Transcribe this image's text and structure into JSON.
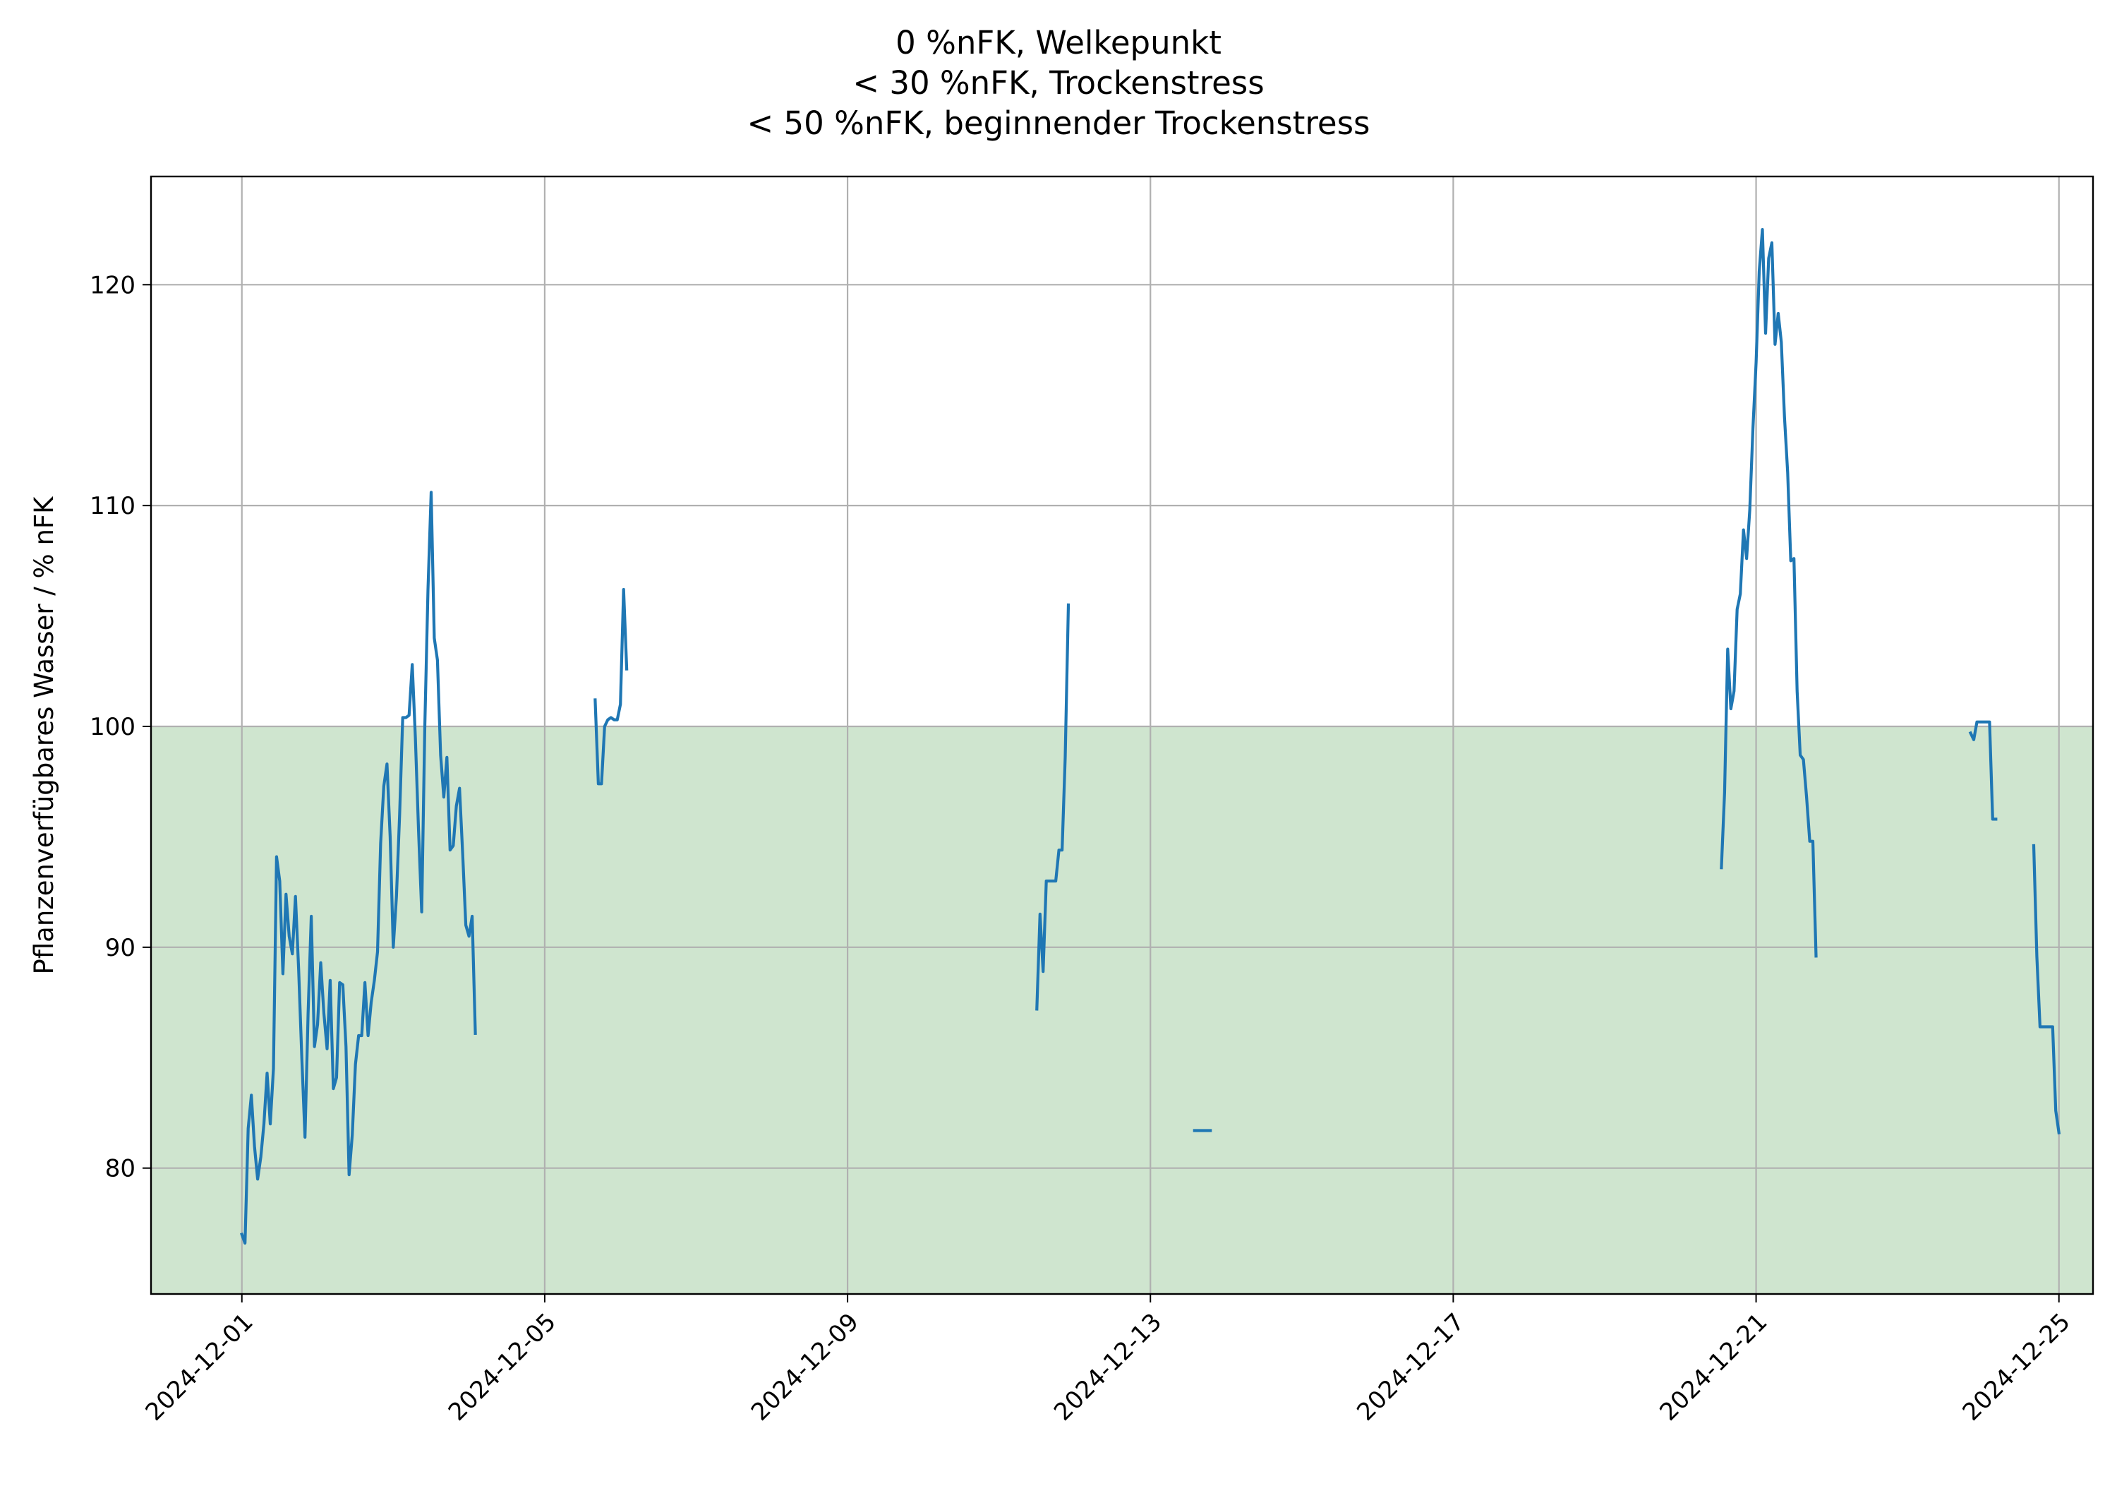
{
  "chart_data": {
    "type": "line",
    "title_lines": [
      "0 %nFK, Welkepunkt",
      "< 30 %nFK, Trockenstress",
      "< 50 %nFK, beginnender Trockenstress"
    ],
    "xlabel": "",
    "ylabel": "Pflanzenverfügbares Wasser / % nFK",
    "xlim": [
      "2024-11-29T19:12",
      "2024-12-25T10:48"
    ],
    "ylim": [
      74.3,
      124.9
    ],
    "x_ticks": [
      "2024-12-01",
      "2024-12-05",
      "2024-12-09",
      "2024-12-13",
      "2024-12-17",
      "2024-12-21",
      "2024-12-25"
    ],
    "y_ticks": [
      80,
      90,
      100,
      110,
      120
    ],
    "grid": true,
    "bands": [
      {
        "y_from": 74.3,
        "y_to": 100,
        "color": "#cfe5cf"
      }
    ],
    "colors": {
      "line": "#1f77b4",
      "grid": "#b0b0b0",
      "band": "#cfe5cf"
    },
    "series": [
      {
        "name": "",
        "segments": [
          [
            [
              "2024-12-01T00:00",
              77.0
            ],
            [
              "2024-12-01T01:00",
              76.6
            ],
            [
              "2024-12-01T02:00",
              81.8
            ],
            [
              "2024-12-01T03:00",
              83.3
            ],
            [
              "2024-12-01T04:00",
              81.0
            ],
            [
              "2024-12-01T05:00",
              79.5
            ],
            [
              "2024-12-01T06:00",
              80.5
            ],
            [
              "2024-12-01T07:00",
              82.0
            ],
            [
              "2024-12-01T08:00",
              84.3
            ],
            [
              "2024-12-01T09:00",
              82.0
            ],
            [
              "2024-12-01T10:00",
              84.5
            ],
            [
              "2024-12-01T11:00",
              94.1
            ],
            [
              "2024-12-01T12:00",
              93.0
            ],
            [
              "2024-12-01T13:00",
              88.8
            ],
            [
              "2024-12-01T14:00",
              92.4
            ],
            [
              "2024-12-01T15:00",
              90.5
            ],
            [
              "2024-12-01T16:00",
              89.7
            ],
            [
              "2024-12-01T17:00",
              92.3
            ],
            [
              "2024-12-01T18:00",
              89.0
            ],
            [
              "2024-12-01T19:00",
              85.0
            ],
            [
              "2024-12-01T20:00",
              81.4
            ],
            [
              "2024-12-01T21:00",
              87.0
            ],
            [
              "2024-12-01T22:00",
              91.4
            ],
            [
              "2024-12-01T23:00",
              85.5
            ],
            [
              "2024-12-02T00:00",
              86.5
            ],
            [
              "2024-12-02T01:00",
              89.3
            ],
            [
              "2024-12-02T02:00",
              87.0
            ],
            [
              "2024-12-02T03:00",
              85.4
            ],
            [
              "2024-12-02T04:00",
              88.5
            ],
            [
              "2024-12-02T05:00",
              83.6
            ],
            [
              "2024-12-02T06:00",
              84.1
            ],
            [
              "2024-12-02T07:00",
              88.4
            ],
            [
              "2024-12-02T08:00",
              88.3
            ],
            [
              "2024-12-02T09:00",
              85.5
            ],
            [
              "2024-12-02T10:00",
              79.7
            ],
            [
              "2024-12-02T11:00",
              81.5
            ],
            [
              "2024-12-02T12:00",
              84.7
            ],
            [
              "2024-12-02T13:00",
              86.0
            ],
            [
              "2024-12-02T14:00",
              86.0
            ],
            [
              "2024-12-02T15:00",
              88.4
            ],
            [
              "2024-12-02T16:00",
              86.0
            ],
            [
              "2024-12-02T17:00",
              87.5
            ],
            [
              "2024-12-02T18:00",
              88.5
            ],
            [
              "2024-12-02T19:00",
              89.8
            ],
            [
              "2024-12-02T20:00",
              94.7
            ],
            [
              "2024-12-02T21:00",
              97.3
            ],
            [
              "2024-12-02T22:00",
              98.3
            ],
            [
              "2024-12-02T23:00",
              95.0
            ],
            [
              "2024-12-03T00:00",
              90.0
            ],
            [
              "2024-12-03T01:00",
              92.3
            ],
            [
              "2024-12-03T02:00",
              96.0
            ],
            [
              "2024-12-03T03:00",
              100.4
            ],
            [
              "2024-12-03T04:00",
              100.4
            ],
            [
              "2024-12-03T05:00",
              100.5
            ],
            [
              "2024-12-03T06:00",
              102.8
            ],
            [
              "2024-12-03T07:00",
              99.5
            ],
            [
              "2024-12-03T08:00",
              95.3
            ],
            [
              "2024-12-03T09:00",
              91.6
            ],
            [
              "2024-12-03T10:00",
              100.0
            ],
            [
              "2024-12-03T11:00",
              106.2
            ],
            [
              "2024-12-03T12:00",
              110.6
            ],
            [
              "2024-12-03T13:00",
              104.0
            ],
            [
              "2024-12-03T14:00",
              103.0
            ],
            [
              "2024-12-03T15:00",
              98.7
            ],
            [
              "2024-12-03T16:00",
              96.8
            ],
            [
              "2024-12-03T17:00",
              98.6
            ],
            [
              "2024-12-03T18:00",
              94.4
            ],
            [
              "2024-12-03T19:00",
              94.6
            ],
            [
              "2024-12-03T20:00",
              96.4
            ],
            [
              "2024-12-03T21:00",
              97.2
            ],
            [
              "2024-12-03T22:00",
              94.2
            ],
            [
              "2024-12-03T23:00",
              91.0
            ],
            [
              "2024-12-04T00:00",
              90.5
            ],
            [
              "2024-12-04T01:00",
              91.4
            ],
            [
              "2024-12-04T02:00",
              86.1
            ]
          ],
          [
            [
              "2024-12-05T16:00",
              101.2
            ],
            [
              "2024-12-05T17:00",
              97.4
            ],
            [
              "2024-12-05T18:00",
              97.4
            ],
            [
              "2024-12-05T19:00",
              100.0
            ],
            [
              "2024-12-05T20:00",
              100.3
            ],
            [
              "2024-12-05T21:00",
              100.4
            ],
            [
              "2024-12-05T22:00",
              100.3
            ],
            [
              "2024-12-05T23:00",
              100.3
            ],
            [
              "2024-12-06T00:00",
              101.0
            ],
            [
              "2024-12-06T01:00",
              106.2
            ],
            [
              "2024-12-06T02:00",
              102.6
            ]
          ],
          [
            [
              "2024-12-11T12:00",
              87.2
            ],
            [
              "2024-12-11T13:00",
              91.5
            ],
            [
              "2024-12-11T14:00",
              88.9
            ],
            [
              "2024-12-11T15:00",
              93.0
            ],
            [
              "2024-12-11T16:00",
              93.0
            ],
            [
              "2024-12-11T17:00",
              93.0
            ],
            [
              "2024-12-11T18:00",
              93.0
            ],
            [
              "2024-12-11T19:00",
              94.4
            ],
            [
              "2024-12-11T20:00",
              94.4
            ],
            [
              "2024-12-11T21:00",
              98.6
            ],
            [
              "2024-12-11T22:00",
              105.5
            ]
          ],
          [
            [
              "2024-12-13T14:00",
              81.7
            ],
            [
              "2024-12-13T15:00",
              81.7
            ],
            [
              "2024-12-13T16:00",
              81.7
            ],
            [
              "2024-12-13T17:00",
              81.7
            ],
            [
              "2024-12-13T18:00",
              81.7
            ],
            [
              "2024-12-13T19:00",
              81.7
            ]
          ],
          [
            [
              "2024-12-20T13:00",
              93.6
            ],
            [
              "2024-12-20T14:00",
              97.0
            ],
            [
              "2024-12-20T15:00",
              103.5
            ],
            [
              "2024-12-20T16:00",
              100.8
            ],
            [
              "2024-12-20T17:00",
              101.6
            ],
            [
              "2024-12-20T18:00",
              105.3
            ],
            [
              "2024-12-20T19:00",
              106.0
            ],
            [
              "2024-12-20T20:00",
              108.9
            ],
            [
              "2024-12-20T21:00",
              107.6
            ],
            [
              "2024-12-20T22:00",
              109.8
            ],
            [
              "2024-12-20T23:00",
              113.5
            ],
            [
              "2024-12-21T00:00",
              116.5
            ],
            [
              "2024-12-21T01:00",
              120.6
            ],
            [
              "2024-12-21T02:00",
              122.5
            ],
            [
              "2024-12-21T03:00",
              117.8
            ],
            [
              "2024-12-21T04:00",
              121.2
            ],
            [
              "2024-12-21T05:00",
              121.9
            ],
            [
              "2024-12-21T06:00",
              117.3
            ],
            [
              "2024-12-21T07:00",
              118.7
            ],
            [
              "2024-12-21T08:00",
              117.4
            ],
            [
              "2024-12-21T09:00",
              114.0
            ],
            [
              "2024-12-21T10:00",
              111.5
            ],
            [
              "2024-12-21T11:00",
              107.5
            ],
            [
              "2024-12-21T12:00",
              107.6
            ],
            [
              "2024-12-21T13:00",
              101.6
            ],
            [
              "2024-12-21T14:00",
              98.7
            ],
            [
              "2024-12-21T15:00",
              98.5
            ],
            [
              "2024-12-21T16:00",
              96.8
            ],
            [
              "2024-12-21T17:00",
              94.8
            ],
            [
              "2024-12-21T18:00",
              94.8
            ],
            [
              "2024-12-21T19:00",
              89.6
            ]
          ],
          [
            [
              "2024-12-23T20:00",
              99.7
            ],
            [
              "2024-12-23T21:00",
              99.4
            ],
            [
              "2024-12-23T22:00",
              100.2
            ],
            [
              "2024-12-23T23:00",
              100.2
            ],
            [
              "2024-12-24T00:00",
              100.2
            ],
            [
              "2024-12-24T01:00",
              100.2
            ],
            [
              "2024-12-24T02:00",
              100.2
            ],
            [
              "2024-12-24T03:00",
              95.8
            ],
            [
              "2024-12-24T04:00",
              95.8
            ]
          ],
          [
            [
              "2024-12-24T16:00",
              94.6
            ],
            [
              "2024-12-24T17:00",
              89.6
            ],
            [
              "2024-12-24T18:00",
              86.4
            ],
            [
              "2024-12-24T19:00",
              86.4
            ],
            [
              "2024-12-24T20:00",
              86.4
            ],
            [
              "2024-12-24T21:00",
              86.4
            ],
            [
              "2024-12-24T22:00",
              86.4
            ],
            [
              "2024-12-24T23:00",
              82.6
            ],
            [
              "2024-12-25T00:00",
              81.6
            ]
          ]
        ]
      }
    ]
  }
}
